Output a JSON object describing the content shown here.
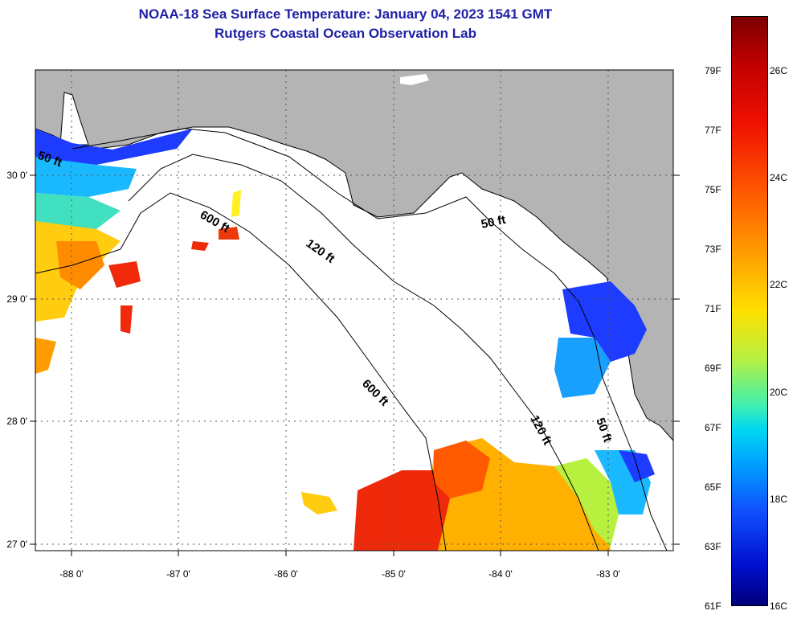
{
  "title": {
    "line1": "NOAA-18 Sea Surface Temperature:  January 04, 2023 1541 GMT",
    "line2": "Rutgers Coastal Ocean Observation Lab"
  },
  "map": {
    "lon_labels": [
      "-88 0'",
      "-87 0'",
      "-86 0'",
      "-85 0'",
      "-84 0'",
      "-83 0'"
    ],
    "lat_labels": [
      "30 0'",
      "29 0'",
      "28 0'",
      "27 0'"
    ],
    "contour_labels": [
      "50 ft",
      "600 ft",
      "120 ft",
      "50 ft",
      "600 ft",
      "120 ft",
      "50 ft"
    ],
    "colors": {
      "land": "#b4b4b4",
      "water_no_data": "#ffffff",
      "grid": "#555555"
    }
  },
  "colorbar": {
    "fahrenheit": [
      "79F",
      "77F",
      "75F",
      "73F",
      "71F",
      "69F",
      "67F",
      "65F",
      "63F",
      "61F"
    ],
    "celsius": [
      "26C",
      "24C",
      "22C",
      "20C",
      "18C",
      "16C"
    ]
  }
}
